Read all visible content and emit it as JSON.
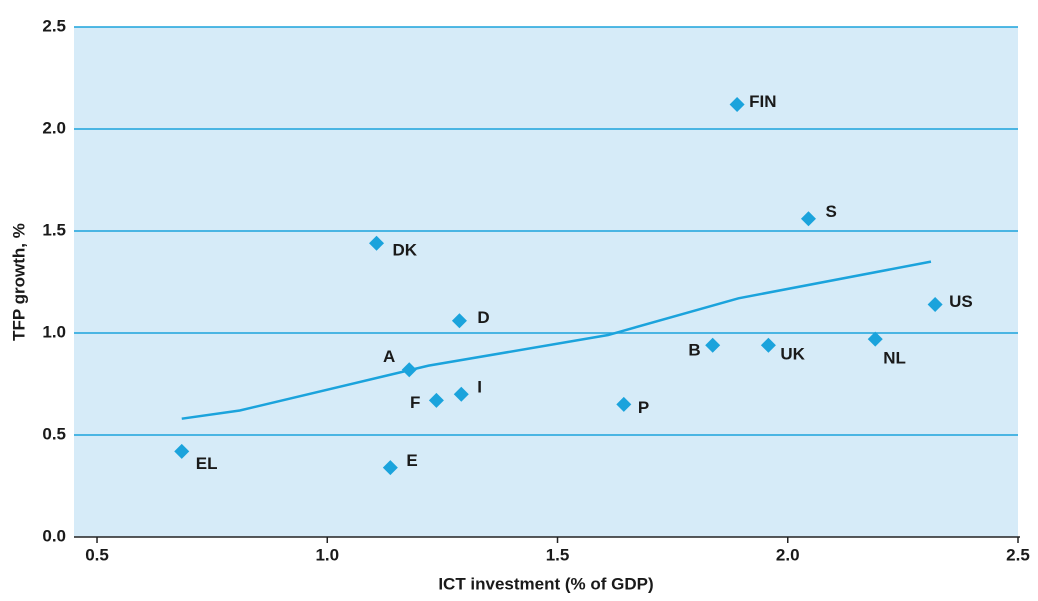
{
  "chart_data": {
    "type": "scatter",
    "x_label": "ICT investment (% of GDP)",
    "y_label": "TFP growth, %",
    "points": {
      "labels": [
        "FIN",
        "S",
        "DK",
        "US",
        "D",
        "NL",
        "B",
        "UK",
        "A",
        "I",
        "F",
        "P",
        "EL",
        "E"
      ],
      "x": [
        1.89,
        2.045,
        1.107,
        2.32,
        1.287,
        2.19,
        1.837,
        1.958,
        1.178,
        1.291,
        1.237,
        1.644,
        0.684,
        1.137
      ],
      "y": [
        2.12,
        1.56,
        1.44,
        1.14,
        1.06,
        0.97,
        0.94,
        0.94,
        0.82,
        0.7,
        0.67,
        0.65,
        0.42,
        0.34
      ],
      "color": "#1ba3dc"
    },
    "trend": {
      "x": [
        0.684,
        0.81,
        1.22,
        1.61,
        1.893,
        2.311
      ],
      "y": [
        0.58,
        0.62,
        0.84,
        0.99,
        1.17,
        1.35
      ],
      "color": "#1ba3dc"
    },
    "xlim": [
      0.45,
      2.5
    ],
    "ylim": [
      0,
      2.5
    ],
    "xticks": [
      0.5,
      {
        "value": 1,
        "label": "1.0"
      },
      1.5,
      {
        "value": 2,
        "label": "2.0"
      },
      2.5
    ],
    "yticks": [
      {
        "value": 0,
        "label": "0.0"
      },
      0.5,
      {
        "value": 1,
        "label": "1.0"
      },
      1.5,
      {
        "value": 2,
        "label": "2.0"
      },
      2.5
    ],
    "grid": true,
    "plot_background": "#d6ebf8",
    "grid_color": "#1ba3dc"
  }
}
